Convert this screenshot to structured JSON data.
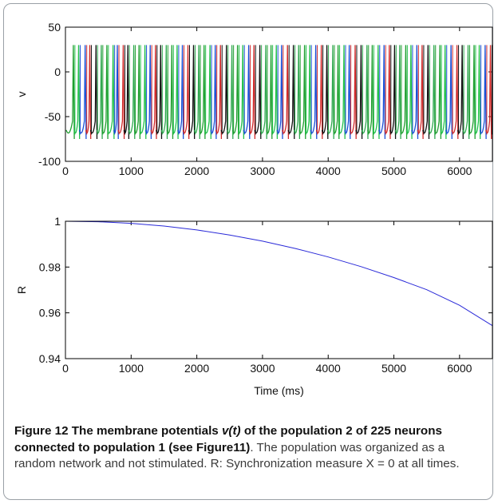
{
  "chart_data": [
    {
      "type": "line",
      "ylabel": "v",
      "xlim": [
        0,
        6500
      ],
      "ylim": [
        -100,
        50
      ],
      "xticks": [
        0,
        1000,
        2000,
        3000,
        4000,
        5000,
        6000
      ],
      "yticks": [
        -100,
        -50,
        0,
        50
      ],
      "spike_peak": 30,
      "rest_level": -75,
      "reset_level": -65,
      "spike_times": [
        120,
        200,
        300,
        370,
        465,
        545,
        630,
        725,
        790,
        880,
        950,
        1040,
        1120,
        1210,
        1290,
        1370,
        1450,
        1535,
        1620,
        1700,
        1780,
        1865,
        1950,
        2030,
        2110,
        2200,
        2280,
        2360,
        2450,
        2535,
        2620,
        2700,
        2790,
        2870,
        2960,
        3050,
        3130,
        3210,
        3290,
        3380,
        3470,
        3550,
        3640,
        3720,
        3810,
        3895,
        3980,
        4070,
        4150,
        4240,
        4320,
        4410,
        4500,
        4590,
        4670,
        4760,
        4850,
        4930,
        5010,
        5090,
        5180,
        5260,
        5350,
        5430,
        5520,
        5610,
        5700,
        5780,
        5870,
        5960,
        6040,
        6130,
        6220,
        6300,
        6390,
        6470
      ],
      "colors": [
        "#1f9e2f",
        "#22c14a",
        "#1a4fd6",
        "#d12a2a",
        "#111111",
        "#2fa84f"
      ]
    },
    {
      "type": "line",
      "ylabel": "R",
      "xlabel": "Time (ms)",
      "xlim": [
        0,
        6500
      ],
      "ylim": [
        0.94,
        1
      ],
      "xticks": [
        0,
        1000,
        2000,
        3000,
        4000,
        5000,
        6000
      ],
      "yticks": [
        0.94,
        0.96,
        0.98,
        1
      ],
      "ytick_labels": [
        "0.94",
        "0.96",
        "0.98",
        "1"
      ],
      "x": [
        0,
        500,
        1000,
        1500,
        2000,
        2500,
        3000,
        3500,
        4000,
        4500,
        5000,
        5500,
        6000,
        6500
      ],
      "y": [
        1.0,
        0.9998,
        0.9991,
        0.9979,
        0.9962,
        0.994,
        0.9913,
        0.9881,
        0.9844,
        0.9802,
        0.9754,
        0.9701,
        0.9633,
        0.9544
      ],
      "color": "#2a2ad8"
    }
  ],
  "caption": {
    "label": "Figure 12",
    "bold_1": "The membrane potentials",
    "italic": "v(t)",
    "bold_2": "of the population 2 of 225 neurons connected to population 1 (see Figure11)",
    "rest": ". The population was organized as a random network and not stimulated. R: Synchronization measure X = 0 at all times."
  }
}
